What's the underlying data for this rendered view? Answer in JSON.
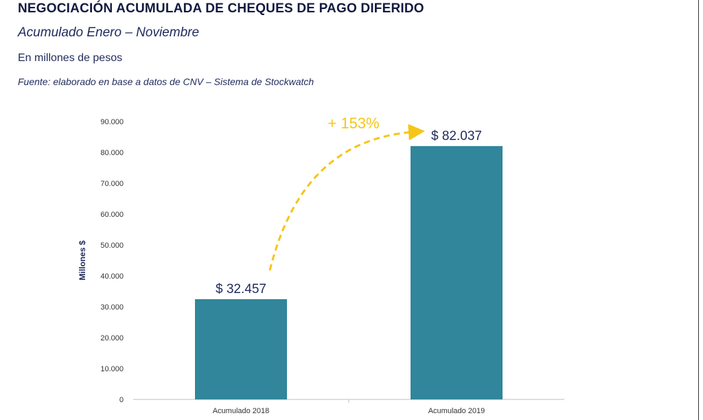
{
  "header": {
    "title": "NEGOCIACIÓN ACUMULADA DE CHEQUES DE PAGO DIFERIDO",
    "subtitle": "Acumulado Enero – Noviembre",
    "unit": "En millones de pesos",
    "source": "Fuente: elaborado en base a datos de CNV – Sistema de Stockwatch"
  },
  "chart_data": {
    "type": "bar",
    "categories": [
      "Acumulado 2018",
      "Acumulado 2019"
    ],
    "values": [
      32457,
      82037
    ],
    "data_labels": [
      "$ 32.457",
      "$ 82.037"
    ],
    "ylabel": "Millones $",
    "ylim": [
      0,
      90000
    ],
    "yticks": [
      0,
      10000,
      20000,
      30000,
      40000,
      50000,
      60000,
      70000,
      80000,
      90000
    ],
    "ytick_labels": [
      "0",
      "10.000",
      "20.000",
      "30.000",
      "40.000",
      "50.000",
      "60.000",
      "70.000",
      "80.000",
      "90.000"
    ],
    "annotation": "+ 153%",
    "bar_color": "#31869b",
    "annotation_color": "#f5c518",
    "grid": false
  }
}
